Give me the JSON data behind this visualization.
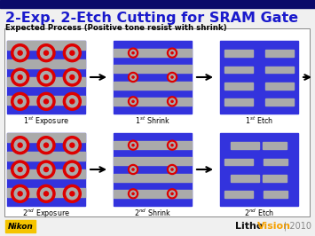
{
  "title": "2-Exp. 2-Etch Cutting for SRAM Gate",
  "subtitle": "Expected Process (Positive tone resist with shrink)",
  "bg_color": "#f0f0f0",
  "title_color": "#1a1acc",
  "subtitle_color": "#000000",
  "header_bar_color": "#0a0a6a",
  "blue_bg": "#3333dd",
  "gray_stripe": "#aaaaaa",
  "red_circle": "#dd0000",
  "nikon_bg": "#f5c400",
  "nikon_text": "Nikon",
  "litho_color": "#111111",
  "vision_color": "#f5a000",
  "year_color": "#888888",
  "panel_border": "#888888",
  "white": "#ffffff"
}
